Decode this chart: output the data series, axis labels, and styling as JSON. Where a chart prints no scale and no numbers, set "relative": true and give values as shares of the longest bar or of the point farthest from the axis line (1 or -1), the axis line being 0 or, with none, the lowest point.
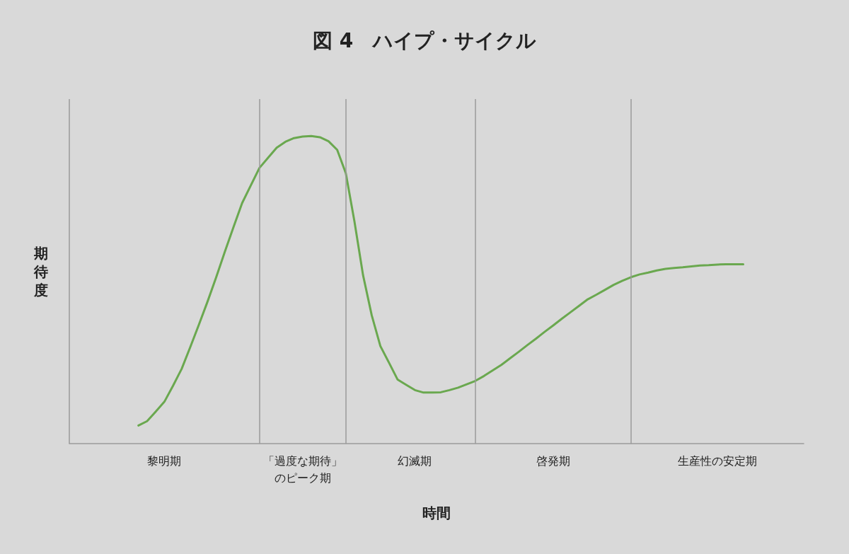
{
  "chart_data": {
    "type": "line",
    "title": "図 4　ハイプ・サイクル",
    "xlabel": "時間",
    "ylabel": "期待度",
    "relative": true,
    "tick_labels": "x",
    "categories": [
      null,
      null,
      null,
      null,
      null,
      null,
      null,
      null,
      null,
      null,
      null,
      "黎明期",
      null,
      null,
      null,
      null,
      null,
      null,
      null,
      null,
      null,
      null,
      null,
      null,
      null,
      null,
      null,
      "「過度な期待」のピーク期",
      null,
      null,
      null,
      null,
      null,
      null,
      null,
      null,
      null,
      null,
      null,
      null,
      "幻滅期",
      null,
      null,
      null,
      null,
      null,
      null,
      null,
      null,
      null,
      null,
      null,
      null,
      null,
      null,
      null,
      "啓発期",
      null,
      null,
      null,
      null,
      null,
      null,
      null,
      null,
      null,
      null,
      null,
      null,
      null,
      null,
      null,
      null,
      null,
      null,
      "生産性の安定期",
      null,
      null,
      null,
      null,
      null,
      null,
      null,
      null,
      null,
      null
    ],
    "series": [
      {
        "color": "#6aa84f",
        "values": [
          null,
          null,
          null,
          null,
          null,
          null,
          null,
          null,
          0.059,
          0.073,
          0.104,
          0.136,
          0.188,
          0.243,
          0.314,
          0.387,
          0.462,
          0.541,
          0.624,
          0.704,
          0.782,
          0.839,
          0.896,
          0.929,
          0.962,
          0.981,
          0.993,
          0.998,
          1,
          0.996,
          0.983,
          0.955,
          0.879,
          0.722,
          0.547,
          0.417,
          0.317,
          0.263,
          0.208,
          0.191,
          0.174,
          0.166,
          0.166,
          0.167,
          0.174,
          0.182,
          0.193,
          0.204,
          0.22,
          0.238,
          0.256,
          0.277,
          0.298,
          0.32,
          0.341,
          0.363,
          0.384,
          0.406,
          0.427,
          0.448,
          0.469,
          0.484,
          0.5,
          0.516,
          0.529,
          0.541,
          0.55,
          0.556,
          0.563,
          0.568,
          0.571,
          0.573,
          0.576,
          0.579,
          0.58,
          0.582,
          0.583,
          0.583,
          0.583,
          null,
          null,
          null,
          null,
          null,
          null,
          null
        ]
      }
    ],
    "grid": false,
    "marker": "none",
    "line_style": "solid"
  }
}
